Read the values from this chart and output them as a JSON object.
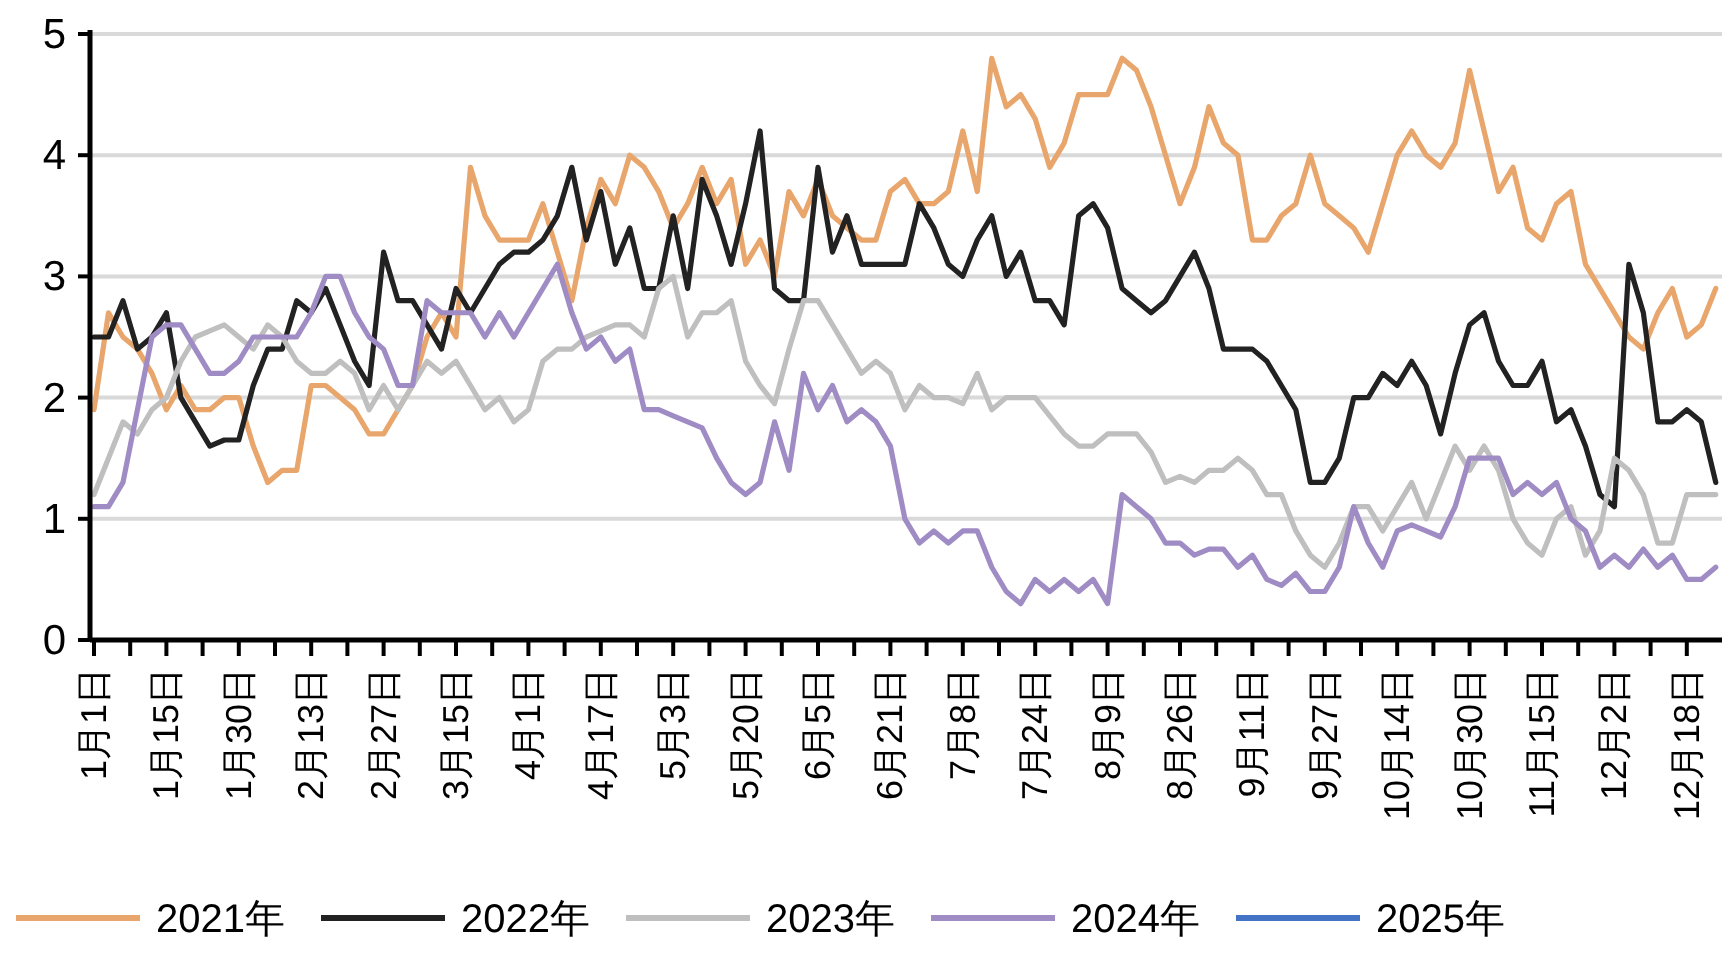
{
  "chart_data": {
    "type": "line",
    "categories": [
      "1月1日",
      null,
      null,
      null,
      null,
      "1月15日",
      null,
      null,
      null,
      null,
      "1月30日",
      null,
      null,
      null,
      null,
      "2月13日",
      null,
      null,
      null,
      null,
      "2月27日",
      null,
      null,
      null,
      null,
      "3月15日",
      null,
      null,
      null,
      null,
      "4月1日",
      null,
      null,
      null,
      null,
      "4月17日",
      null,
      null,
      null,
      null,
      "5月3日",
      null,
      null,
      null,
      null,
      "5月20日",
      null,
      null,
      null,
      null,
      "6月5日",
      null,
      null,
      null,
      null,
      "6月21日",
      null,
      null,
      null,
      null,
      "7月8日",
      null,
      null,
      null,
      null,
      "7月24日",
      null,
      null,
      null,
      null,
      "8月9日",
      null,
      null,
      null,
      null,
      "8月26日",
      null,
      null,
      null,
      null,
      "9月11日",
      null,
      null,
      null,
      null,
      "9月27日",
      null,
      null,
      null,
      null,
      "10月14日",
      null,
      null,
      null,
      null,
      "10月30日",
      null,
      null,
      null,
      null,
      "11月15日",
      null,
      null,
      null,
      null,
      "12月2日",
      null,
      null,
      null,
      null,
      "12月18日",
      null,
      null
    ],
    "ylim": [
      0,
      5
    ],
    "yticks": [
      0,
      1,
      2,
      3,
      4,
      5
    ],
    "grid": "y",
    "legend": "bottom",
    "line_style": "solid",
    "marker": "none",
    "series": [
      {
        "name": "2021年",
        "color": "#e8a66c",
        "values": [
          1.9,
          2.7,
          2.5,
          2.4,
          2.2,
          1.9,
          2.1,
          1.9,
          1.9,
          2.0,
          2.0,
          1.6,
          1.3,
          1.4,
          1.4,
          2.1,
          2.1,
          2.0,
          1.9,
          1.7,
          1.7,
          1.9,
          2.1,
          2.5,
          2.7,
          2.5,
          3.9,
          3.5,
          3.3,
          3.3,
          3.3,
          3.6,
          3.2,
          2.8,
          3.4,
          3.8,
          3.6,
          4.0,
          3.9,
          3.7,
          3.4,
          3.6,
          3.9,
          3.6,
          3.8,
          3.1,
          3.3,
          3.0,
          3.7,
          3.5,
          3.8,
          3.5,
          3.4,
          3.3,
          3.3,
          3.7,
          3.8,
          3.6,
          3.6,
          3.7,
          4.2,
          3.7,
          4.8,
          4.4,
          4.5,
          4.3,
          3.9,
          4.1,
          4.5,
          4.5,
          4.5,
          4.8,
          4.7,
          4.4,
          4.0,
          3.6,
          3.9,
          4.4,
          4.1,
          4.0,
          3.3,
          3.3,
          3.5,
          3.6,
          4.0,
          3.6,
          3.5,
          3.4,
          3.2,
          3.6,
          4.0,
          4.2,
          4.0,
          3.9,
          4.1,
          4.7,
          4.2,
          3.7,
          3.9,
          3.4,
          3.3,
          3.6,
          3.7,
          3.1,
          2.9,
          2.7,
          2.5,
          2.4,
          2.7,
          2.9,
          2.5,
          2.6,
          2.9
        ]
      },
      {
        "name": "2022年",
        "color": "#222222",
        "values": [
          2.5,
          2.5,
          2.8,
          2.4,
          2.5,
          2.7,
          2.0,
          1.8,
          1.6,
          1.65,
          1.65,
          2.1,
          2.4,
          2.4,
          2.8,
          2.7,
          2.9,
          2.6,
          2.3,
          2.1,
          3.2,
          2.8,
          2.8,
          2.6,
          2.4,
          2.9,
          2.7,
          2.9,
          3.1,
          3.2,
          3.2,
          3.3,
          3.5,
          3.9,
          3.3,
          3.7,
          3.1,
          3.4,
          2.9,
          2.9,
          3.5,
          2.9,
          3.8,
          3.5,
          3.1,
          3.6,
          4.2,
          2.9,
          2.8,
          2.8,
          3.9,
          3.2,
          3.5,
          3.1,
          3.1,
          3.1,
          3.1,
          3.6,
          3.4,
          3.1,
          3.0,
          3.3,
          3.5,
          3.0,
          3.2,
          2.8,
          2.8,
          2.6,
          3.5,
          3.6,
          3.4,
          2.9,
          2.8,
          2.7,
          2.8,
          3.0,
          3.2,
          2.9,
          2.4,
          2.4,
          2.4,
          2.3,
          2.1,
          1.9,
          1.3,
          1.3,
          1.5,
          2.0,
          2.0,
          2.2,
          2.1,
          2.3,
          2.1,
          1.7,
          2.2,
          2.6,
          2.7,
          2.3,
          2.1,
          2.1,
          2.3,
          1.8,
          1.9,
          1.6,
          1.2,
          1.1,
          3.1,
          2.7,
          1.8,
          1.8,
          1.9,
          1.8,
          1.3
        ]
      },
      {
        "name": "2023年",
        "color": "#bfbfbf",
        "values": [
          1.2,
          1.5,
          1.8,
          1.7,
          1.9,
          2.0,
          2.3,
          2.5,
          2.55,
          2.6,
          2.5,
          2.4,
          2.6,
          2.5,
          2.3,
          2.2,
          2.2,
          2.3,
          2.2,
          1.9,
          2.1,
          1.9,
          2.1,
          2.3,
          2.2,
          2.3,
          2.1,
          1.9,
          2.0,
          1.8,
          1.9,
          2.3,
          2.4,
          2.4,
          2.5,
          2.55,
          2.6,
          2.6,
          2.5,
          2.9,
          3.0,
          2.5,
          2.7,
          2.7,
          2.8,
          2.3,
          2.1,
          1.95,
          2.4,
          2.8,
          2.8,
          2.6,
          2.4,
          2.2,
          2.3,
          2.2,
          1.9,
          2.1,
          2.0,
          2.0,
          1.95,
          2.2,
          1.9,
          2.0,
          2.0,
          2.0,
          1.85,
          1.7,
          1.6,
          1.6,
          1.7,
          1.7,
          1.7,
          1.55,
          1.3,
          1.35,
          1.3,
          1.4,
          1.4,
          1.5,
          1.4,
          1.2,
          1.2,
          0.9,
          0.7,
          0.6,
          0.8,
          1.1,
          1.1,
          0.9,
          1.1,
          1.3,
          1.0,
          1.3,
          1.6,
          1.4,
          1.6,
          1.4,
          1.0,
          0.8,
          0.7,
          1.0,
          1.1,
          0.7,
          0.9,
          1.5,
          1.4,
          1.2,
          0.8,
          0.8,
          1.2,
          1.2,
          1.2
        ]
      },
      {
        "name": "2024年",
        "color": "#a08cc4",
        "values": [
          1.1,
          1.1,
          1.3,
          1.9,
          2.5,
          2.6,
          2.6,
          2.4,
          2.2,
          2.2,
          2.3,
          2.5,
          2.5,
          2.5,
          2.5,
          2.7,
          3.0,
          3.0,
          2.7,
          2.5,
          2.4,
          2.1,
          2.1,
          2.8,
          2.7,
          2.7,
          2.7,
          2.5,
          2.7,
          2.5,
          2.7,
          2.9,
          3.1,
          2.7,
          2.4,
          2.5,
          2.3,
          2.4,
          1.9,
          1.9,
          1.85,
          1.8,
          1.75,
          1.5,
          1.3,
          1.2,
          1.3,
          1.8,
          1.4,
          2.2,
          1.9,
          2.1,
          1.8,
          1.9,
          1.8,
          1.6,
          1.0,
          0.8,
          0.9,
          0.8,
          0.9,
          0.9,
          0.6,
          0.4,
          0.3,
          0.5,
          0.4,
          0.5,
          0.4,
          0.5,
          0.3,
          1.2,
          1.1,
          1.0,
          0.8,
          0.8,
          0.7,
          0.75,
          0.75,
          0.6,
          0.7,
          0.5,
          0.45,
          0.55,
          0.4,
          0.4,
          0.6,
          1.1,
          0.8,
          0.6,
          0.9,
          0.95,
          0.9,
          0.85,
          1.1,
          1.5,
          1.5,
          1.5,
          1.2,
          1.3,
          1.2,
          1.3,
          1.0,
          0.9,
          0.6,
          0.7,
          0.6,
          0.75,
          0.6,
          0.7,
          0.5,
          0.5,
          0.6
        ]
      },
      {
        "name": "2025年",
        "color": "#4472c4",
        "values": [
          null,
          null,
          null,
          null,
          null,
          null,
          null,
          null,
          null,
          null,
          null,
          null,
          null,
          null,
          null,
          null,
          null,
          null,
          null,
          null,
          null,
          null,
          null,
          null,
          null,
          null,
          null,
          null,
          null,
          null,
          null,
          null,
          null,
          null,
          null,
          null,
          null,
          null,
          null,
          null,
          null,
          null,
          null,
          null,
          null,
          null,
          null,
          null,
          null,
          null,
          null,
          null,
          null,
          null,
          null,
          null,
          null,
          null,
          null,
          null,
          null,
          null,
          null,
          null,
          null,
          null,
          null,
          null,
          null,
          null,
          null,
          null,
          null,
          null,
          null,
          null,
          null,
          null,
          null,
          null,
          null,
          null,
          null,
          null,
          null,
          null,
          null,
          null,
          null,
          null,
          null,
          null,
          null,
          null,
          null,
          null,
          null,
          null,
          null,
          null,
          null,
          null,
          null,
          null,
          null,
          null,
          null,
          null,
          null,
          null,
          null,
          null,
          null
        ]
      }
    ]
  }
}
